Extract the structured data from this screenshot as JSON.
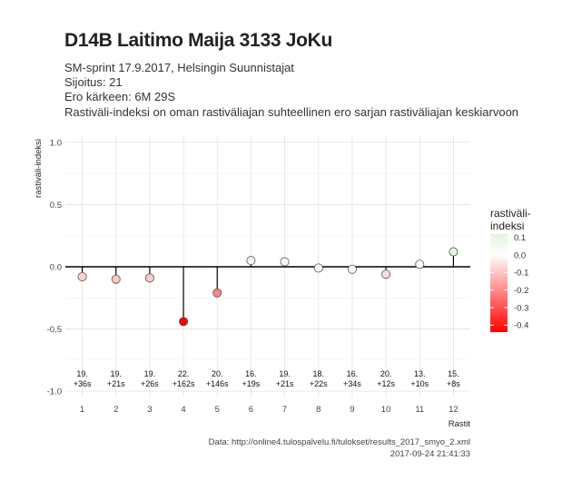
{
  "header": {
    "title": "D14B Laitimo Maija 3133 JoKu",
    "subtitle_lines": [
      "SM-sprint 17.9.2017, Helsingin Suunnistajat",
      "Sijoitus: 21",
      "Ero kärkeen: 6M 29S",
      "Rastiväli-indeksi on oman rastiväliajan suhteellinen ero sarjan rastiväliajan keskiarvoon"
    ]
  },
  "chart_data": {
    "type": "scatter",
    "style": "lollipop",
    "xlabel": "Rastit",
    "ylabel": "rastiväli-indeksi",
    "x": [
      1,
      2,
      3,
      4,
      5,
      6,
      7,
      8,
      9,
      10,
      11,
      12
    ],
    "x_tick_labels": [
      "1",
      "2",
      "3",
      "4",
      "5",
      "6",
      "7",
      "8",
      "9",
      "10",
      "11",
      "12"
    ],
    "values": [
      -0.08,
      -0.1,
      -0.09,
      -0.44,
      -0.21,
      0.05,
      0.04,
      -0.01,
      -0.02,
      -0.06,
      0.02,
      0.12
    ],
    "annotations": [
      [
        "19.",
        "+36s"
      ],
      [
        "19.",
        "+21s"
      ],
      [
        "19.",
        "+26s"
      ],
      [
        "22.",
        "+162s"
      ],
      [
        "20.",
        "+146s"
      ],
      [
        "16.",
        "+19s"
      ],
      [
        "19.",
        "+21s"
      ],
      [
        "18.",
        "+22s"
      ],
      [
        "16.",
        "+34s"
      ],
      [
        "20.",
        "+12s"
      ],
      [
        "13.",
        "+10s"
      ],
      [
        "15.",
        "+8s"
      ]
    ],
    "ylim": [
      -1.05,
      1.05
    ],
    "y_ticks": [
      -1.0,
      -0.5,
      0.0,
      0.5,
      1.0
    ],
    "y_tick_labels": [
      "-1.0",
      "-0.5",
      "0.0",
      "0.5",
      "1.0"
    ],
    "xlim": [
      0.5,
      12.5
    ],
    "grid": true,
    "legend": {
      "title_lines": [
        "rastiväli-",
        "indeksi"
      ],
      "placement": "right",
      "ticks": [
        0.1,
        0.0,
        -0.1,
        -0.2,
        -0.3,
        -0.4
      ],
      "tick_labels": [
        "0.1",
        "0.0",
        "-0.1",
        "-0.2",
        "-0.3",
        "-0.4"
      ],
      "range": [
        -0.44,
        0.12
      ]
    },
    "colors": {
      "low": "#ff0000",
      "mid": "#ffffff",
      "high": "#e0f5dc"
    }
  },
  "caption": {
    "source": "Data: http://online4.tulospalvelu.fi/tulokset/results_2017_smyo_2.xml",
    "timestamp": "2017-09-24 21:41:33"
  }
}
